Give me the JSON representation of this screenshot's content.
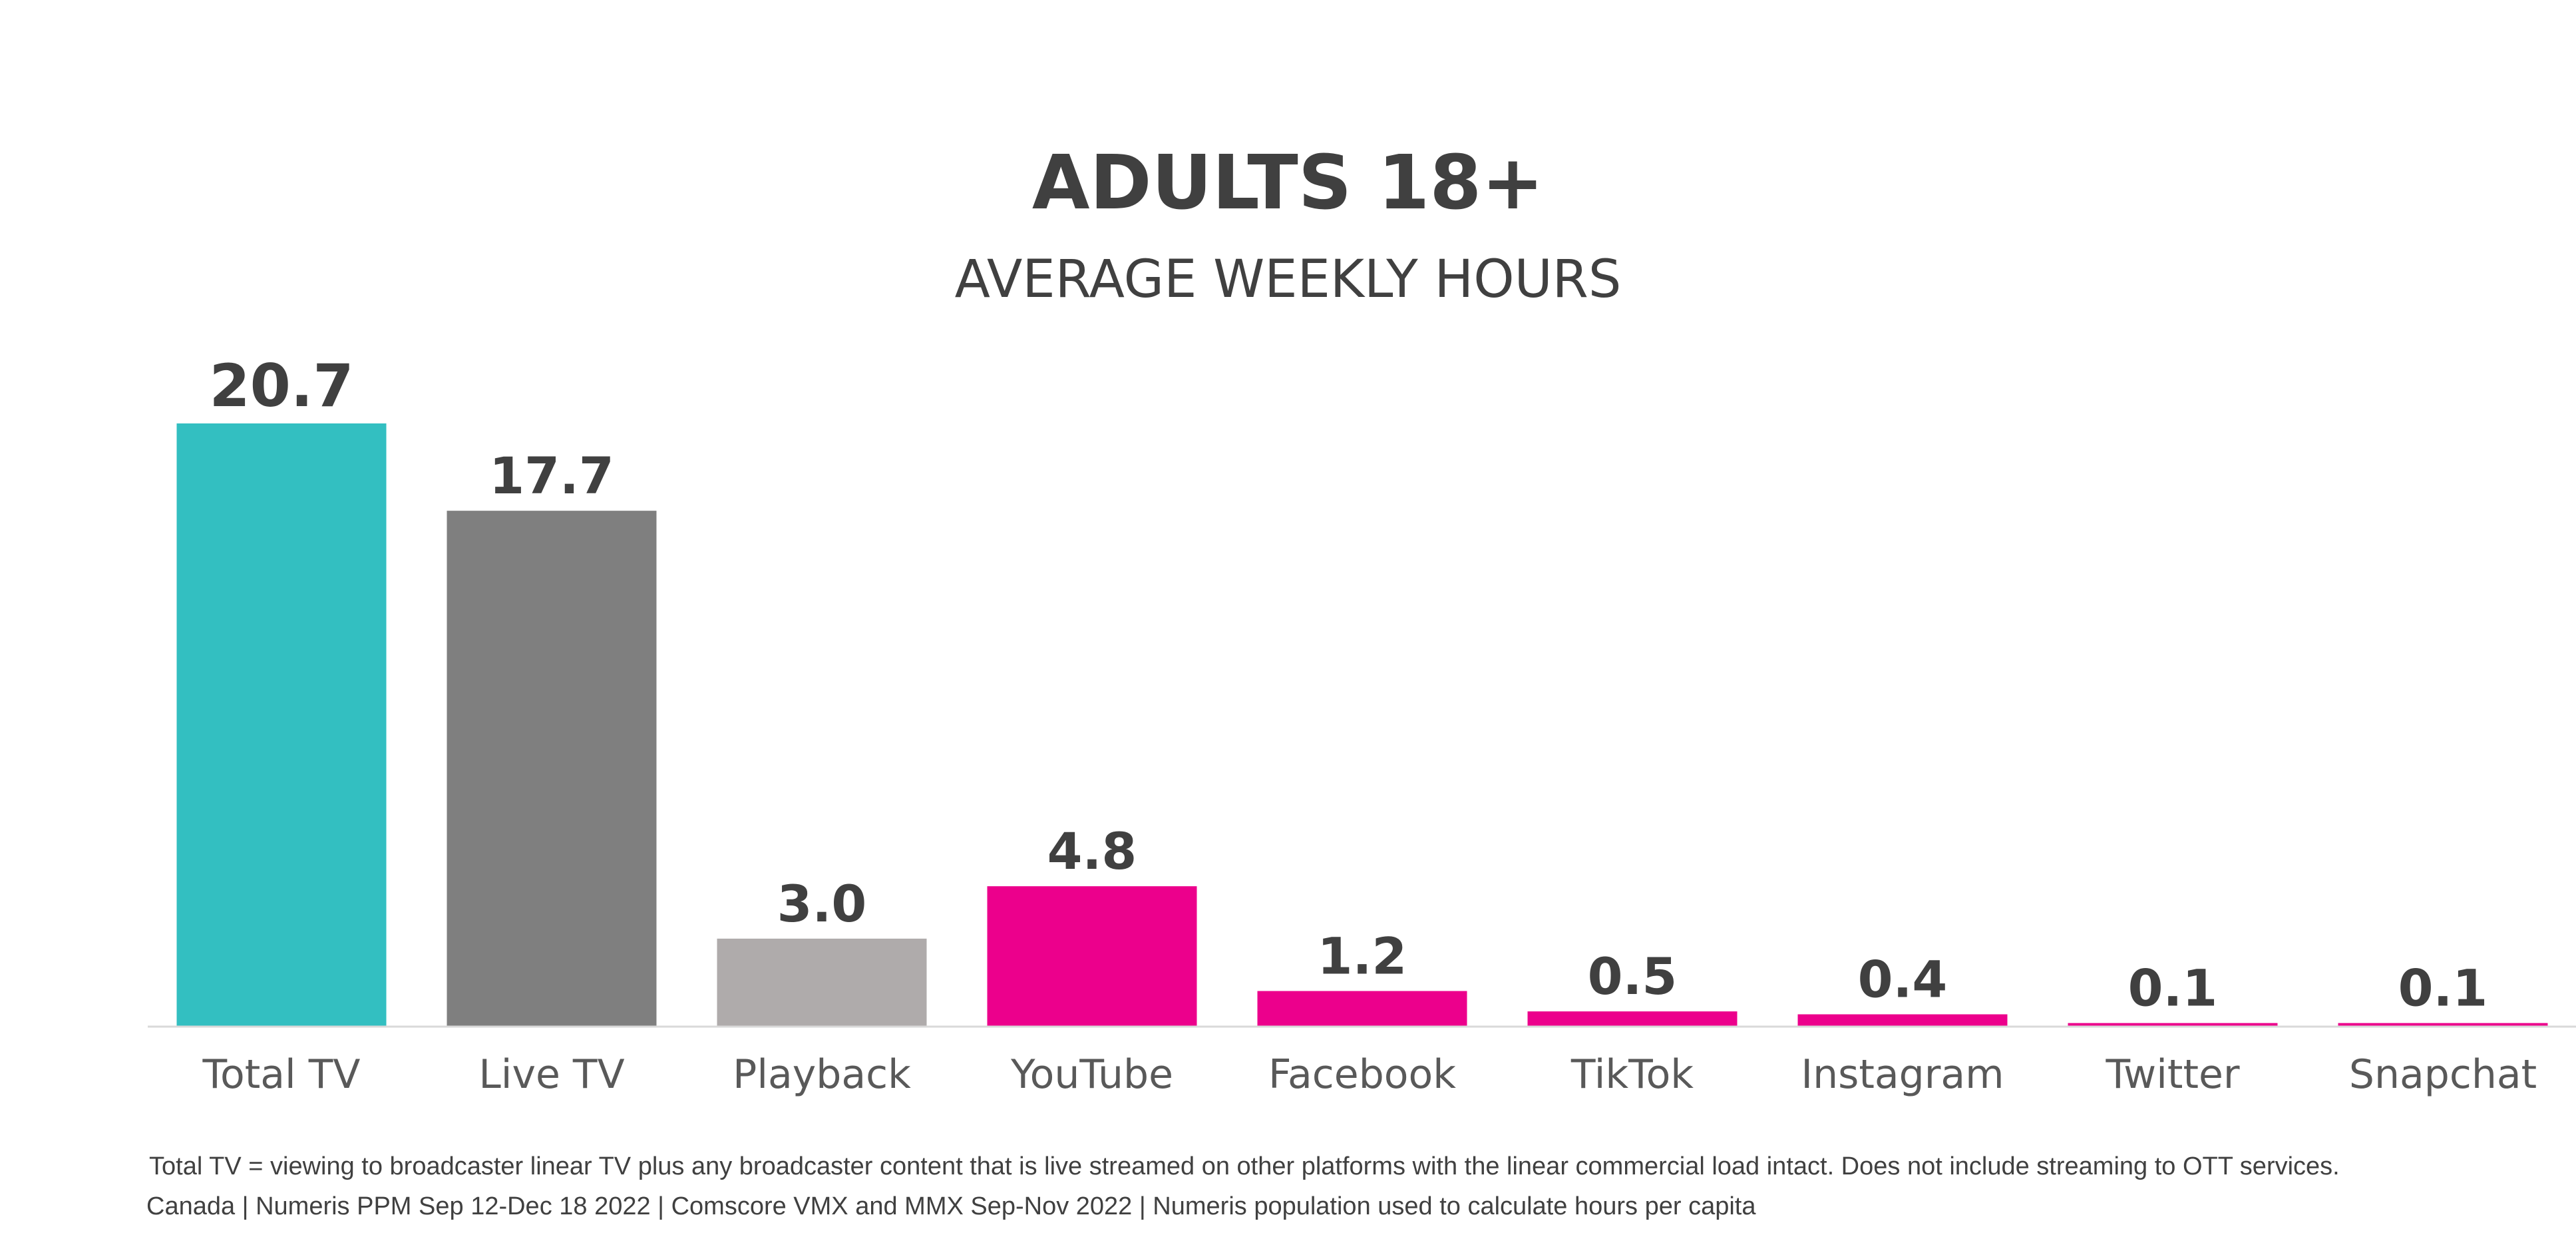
{
  "chart_data": {
    "type": "bar",
    "title": "ADULTS 18+",
    "subtitle": "AVERAGE WEEKLY HOURS",
    "categories": [
      "Total TV",
      "Live TV",
      "Playback",
      "YouTube",
      "Facebook",
      "TikTok",
      "Instagram",
      "Twitter",
      "Snapchat"
    ],
    "values": [
      20.7,
      17.7,
      3.0,
      4.8,
      1.2,
      0.5,
      0.4,
      0.1,
      0.1
    ],
    "value_labels": [
      "20.7",
      "17.7",
      "3.0",
      "4.8",
      "1.2",
      "0.5",
      "0.4",
      "0.1",
      "0.1"
    ],
    "colors": [
      "#33BFC1",
      "#7F7F7F",
      "#AFABAB",
      "#EC008C",
      "#EC008C",
      "#EC008C",
      "#EC008C",
      "#EC008C",
      "#EC008C"
    ],
    "xlabel": "",
    "ylabel": "",
    "ylim": [
      0,
      20.7
    ],
    "grid": false,
    "legend": "none"
  },
  "footnotes": {
    "line1": "Total TV = viewing to broadcaster linear TV plus any broadcaster content that is live streamed on other platforms with the linear commercial load intact. Does not include streaming to OTT services.",
    "line2": "Canada | Numeris PPM Sep 12-Dec 18 2022 | Comscore VMX and MMX Sep-Nov 2022 | Numeris population used to calculate hours per capita"
  },
  "colors": {
    "text": "#404040",
    "axis_line": "#D9D9D9"
  }
}
